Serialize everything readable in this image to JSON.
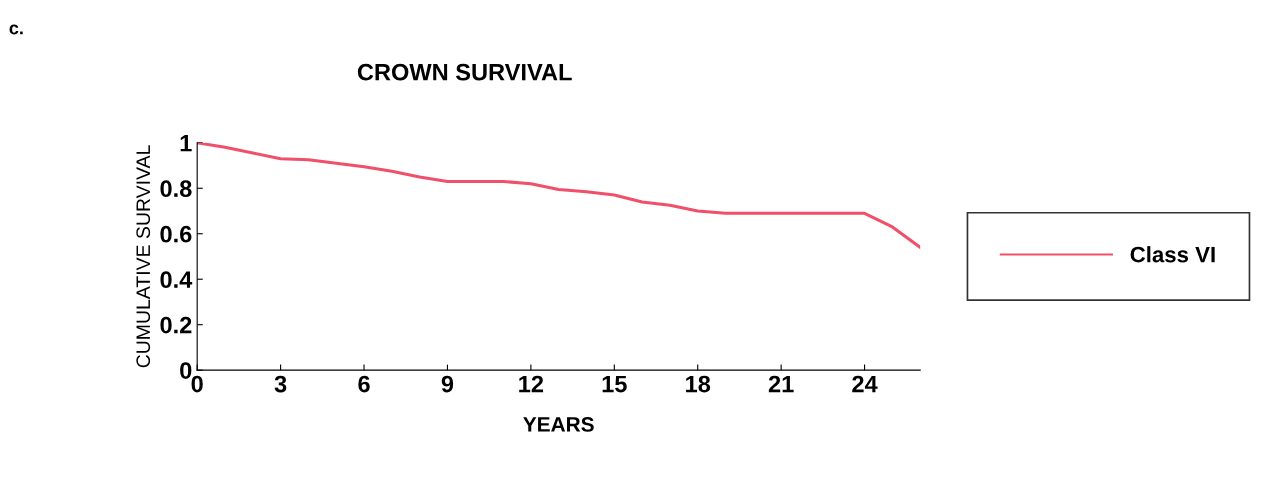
{
  "chart_data": {
    "type": "line",
    "title": "CROWN SURVIVAL",
    "xlabel": "YEARS",
    "ylabel": "CUMULATIVE SURVIVAL",
    "annotations": [
      "c."
    ],
    "x": [
      0,
      1,
      2,
      3,
      4,
      5,
      6,
      7,
      8,
      9,
      10,
      11,
      12,
      13,
      14,
      15,
      16,
      17,
      18,
      19,
      20,
      21,
      22,
      23,
      24,
      25,
      26
    ],
    "series": [
      {
        "name": "Class VI",
        "color": "#f0506a",
        "values": [
          1.0,
          0.98,
          0.955,
          0.93,
          0.925,
          0.91,
          0.895,
          0.875,
          0.85,
          0.83,
          0.83,
          0.83,
          0.82,
          0.795,
          0.785,
          0.77,
          0.74,
          0.725,
          0.7,
          0.69,
          0.69,
          0.69,
          0.69,
          0.69,
          0.69,
          0.63,
          0.54
        ]
      }
    ],
    "xlim": [
      0,
      26
    ],
    "xticks": [
      0,
      3,
      6,
      9,
      12,
      15,
      18,
      21,
      24
    ],
    "ylim": [
      0,
      1
    ],
    "yticks": [
      0,
      0.2,
      0.4,
      0.6,
      0.8,
      1
    ],
    "grid": false,
    "legend": "right",
    "marker": "none",
    "line_style": "solid"
  }
}
